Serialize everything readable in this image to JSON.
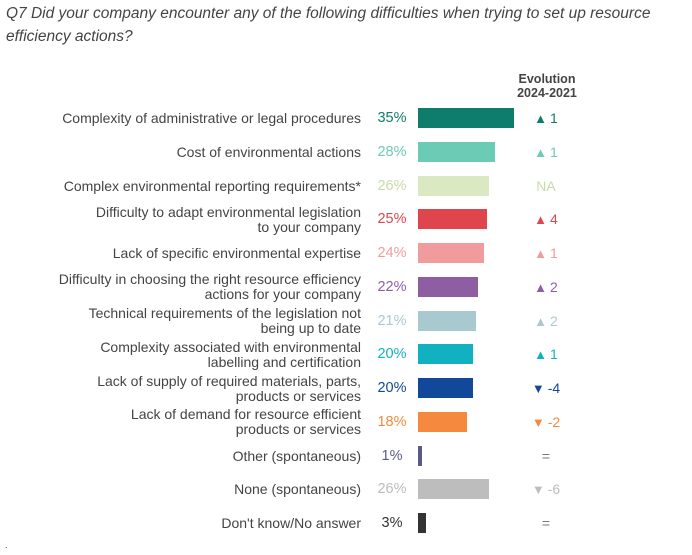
{
  "question": "Q7 Did your company encounter any of the following difficulties when trying to set up resource efficiency actions?",
  "evolution_header": [
    "Evolution",
    "2024-2021"
  ],
  "footer_mark": ".",
  "chart_data": {
    "type": "bar",
    "orientation": "horizontal",
    "title": "",
    "unit": "%",
    "xlim": [
      0,
      35
    ],
    "categories": [
      [
        "Complexity of administrative or legal procedures"
      ],
      [
        "Cost of environmental actions"
      ],
      [
        "Complex environmental reporting requirements*"
      ],
      [
        "Difficulty to adapt environmental legislation",
        "to your company"
      ],
      [
        "Lack of specific environmental expertise"
      ],
      [
        "Difficulty in choosing the right resource efficiency",
        "actions for your company"
      ],
      [
        "Technical requirements of the legislation not",
        "being up to date"
      ],
      [
        "Complexity associated with environmental",
        "labelling and certification"
      ],
      [
        "Lack of supply of required materials, parts,",
        "products or services"
      ],
      [
        "Lack of demand for resource efficient",
        "products or services"
      ],
      [
        "Other (spontaneous)"
      ],
      [
        "None (spontaneous)"
      ],
      [
        "Don't know/No answer"
      ]
    ],
    "values": [
      35,
      28,
      26,
      25,
      24,
      22,
      21,
      20,
      20,
      18,
      1,
      26,
      3
    ],
    "value_labels": [
      "35%",
      "28%",
      "26%",
      "25%",
      "24%",
      "22%",
      "21%",
      "20%",
      "20%",
      "18%",
      "1%",
      "26%",
      "3%"
    ],
    "colors": [
      "#0f7d6b",
      "#6ccbb5",
      "#dbe9c2",
      "#e0454e",
      "#f19c9c",
      "#8f5ea2",
      "#a9c9d1",
      "#12b1c1",
      "#12489a",
      "#f5893d",
      "#5a5a8a",
      "#bdbdbd",
      "#333333"
    ],
    "evolution": [
      {
        "dir": "up",
        "value": "1"
      },
      {
        "dir": "up",
        "value": "1"
      },
      {
        "dir": "none",
        "value": "NA"
      },
      {
        "dir": "up",
        "value": "4"
      },
      {
        "dir": "up",
        "value": "1"
      },
      {
        "dir": "up",
        "value": "2"
      },
      {
        "dir": "up",
        "value": "2"
      },
      {
        "dir": "up",
        "value": "1"
      },
      {
        "dir": "down",
        "value": "-4"
      },
      {
        "dir": "down",
        "value": "-2"
      },
      {
        "dir": "none",
        "value": "="
      },
      {
        "dir": "down",
        "value": "-6"
      },
      {
        "dir": "none",
        "value": "="
      }
    ],
    "label_colors": [
      "#0f7d6b",
      "#6ccbb5",
      "#c9dba8",
      "#e0454e",
      "#f19c9c",
      "#8f5ea2",
      "#a9c9d1",
      "#12b1c1",
      "#12489a",
      "#f5893d",
      "#5a5a8a",
      "#bdbdbd",
      "#333333"
    ]
  }
}
